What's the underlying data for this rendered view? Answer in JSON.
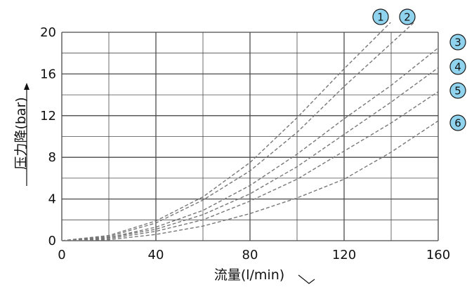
{
  "chart_data": {
    "type": "line",
    "title": "",
    "xlabel": "流量(l/min)",
    "ylabel": "压力降(bar)",
    "xlim": [
      0,
      160
    ],
    "ylim": [
      0,
      20
    ],
    "x_ticks": [
      "0",
      "40",
      "80",
      "120",
      "160"
    ],
    "y_ticks": [
      "0",
      "4",
      "8",
      "12",
      "16",
      "20"
    ],
    "grid": true,
    "line_style": "dashed",
    "series": [
      {
        "name": "1",
        "x": [
          0,
          20,
          40,
          60,
          80,
          100,
          120,
          140
        ],
        "y": [
          0,
          0.5,
          1.9,
          4.2,
          7.5,
          11.8,
          16.5,
          21.0
        ]
      },
      {
        "name": "2",
        "x": [
          0,
          20,
          40,
          60,
          80,
          100,
          120,
          150
        ],
        "y": [
          0,
          0.4,
          1.7,
          3.9,
          6.7,
          10.4,
          14.8,
          21.0
        ]
      },
      {
        "name": "3",
        "x": [
          0,
          20,
          40,
          60,
          80,
          100,
          120,
          140,
          160
        ],
        "y": [
          0,
          0.3,
          1.3,
          2.9,
          5.3,
          8.3,
          11.7,
          14.9,
          18.5
        ]
      },
      {
        "name": "4",
        "x": [
          0,
          20,
          40,
          60,
          80,
          100,
          120,
          140,
          160
        ],
        "y": [
          0,
          0.3,
          1.1,
          2.5,
          4.5,
          7.1,
          10.2,
          13.3,
          16.6
        ]
      },
      {
        "name": "5",
        "x": [
          0,
          20,
          40,
          60,
          80,
          100,
          120,
          140,
          160
        ],
        "y": [
          0,
          0.2,
          0.9,
          2.0,
          3.8,
          5.9,
          8.6,
          11.3,
          14.3
        ]
      },
      {
        "name": "6",
        "x": [
          0,
          20,
          40,
          60,
          80,
          100,
          120,
          140,
          160
        ],
        "y": [
          0,
          0.1,
          0.6,
          1.4,
          2.6,
          4.1,
          5.9,
          8.5,
          11.5
        ]
      }
    ],
    "colors": {
      "grid": "#4a4a4a",
      "curve": "#777777",
      "badge_fill": "#8fd3ee",
      "badge_stroke": "#1a1a1a"
    }
  }
}
